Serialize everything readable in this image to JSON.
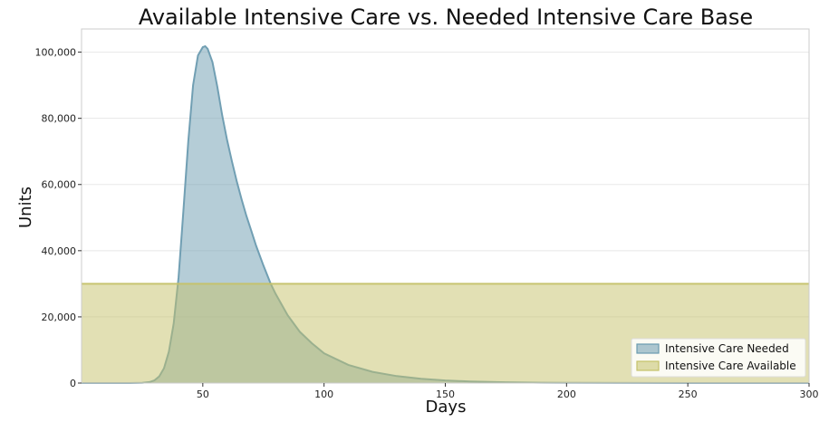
{
  "chart_data": {
    "type": "area",
    "title": "Available Intensive Care vs. Needed Intensive Care Base",
    "xlabel": "Days",
    "ylabel": "Units",
    "xlim": [
      0,
      300
    ],
    "ylim": [
      0,
      107000
    ],
    "x_ticks": [
      50,
      100,
      150,
      200,
      250,
      300
    ],
    "x_tick_labels": [
      "50",
      "100",
      "150",
      "200",
      "250",
      "300"
    ],
    "y_ticks": [
      0,
      20000,
      40000,
      60000,
      80000,
      100000
    ],
    "y_tick_labels": [
      "0",
      "20,000",
      "40,000",
      "60,000",
      "80,000",
      "100,000"
    ],
    "grid": "horizontal",
    "legend_position": "bottom-right",
    "series": [
      {
        "name": "Intensive Care Needed",
        "color": "#6b9bb0",
        "x": [
          0,
          20,
          25,
          28,
          30,
          32,
          34,
          36,
          38,
          40,
          42,
          44,
          46,
          48,
          50,
          51,
          52,
          54,
          56,
          58,
          60,
          62,
          64,
          66,
          68,
          70,
          72,
          75,
          78,
          80,
          85,
          90,
          95,
          100,
          110,
          120,
          130,
          140,
          150,
          160,
          175,
          190,
          200,
          225,
          250,
          275,
          300
        ],
        "values": [
          0,
          10,
          80,
          300,
          800,
          2000,
          4500,
          9500,
          18000,
          32000,
          52000,
          73000,
          90000,
          99000,
          101500,
          101800,
          101000,
          97000,
          89500,
          81000,
          73500,
          67000,
          61000,
          55500,
          50500,
          46000,
          41500,
          35500,
          30000,
          27000,
          20500,
          15500,
          12000,
          9000,
          5500,
          3400,
          2100,
          1300,
          800,
          500,
          250,
          120,
          80,
          30,
          10,
          5,
          0
        ]
      },
      {
        "name": "Intensive Care Available",
        "color": "#c5c16a",
        "x": [
          0,
          300
        ],
        "values": [
          30000,
          30000
        ]
      }
    ]
  }
}
